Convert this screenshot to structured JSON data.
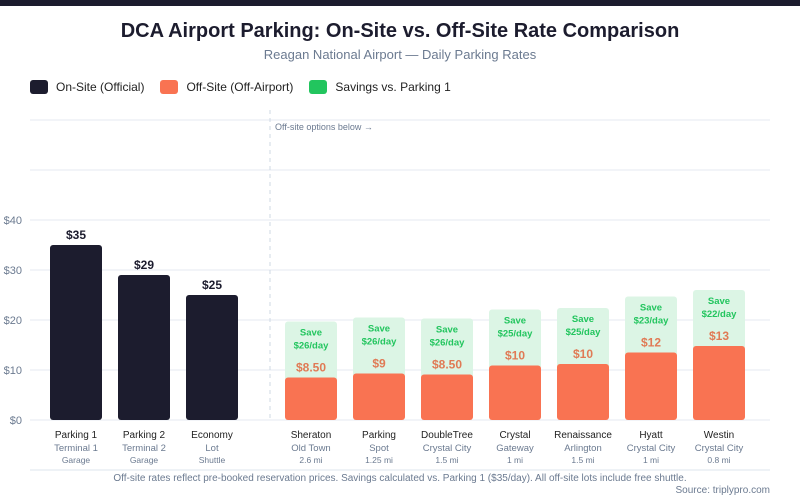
{
  "chart_data": {
    "type": "bar",
    "title": "DCA Airport Parking: On-Site vs. Off-Site Rate Comparison",
    "subtitle": "Reagan National Airport — Daily Parking Rates",
    "legend": [
      {
        "label": "On-Site (Official)",
        "color": "#1c1c2e"
      },
      {
        "label": "Off-Site (Off-Airport)",
        "color": "#f97352"
      },
      {
        "label": "Savings vs. Parking 1",
        "color": "#22c55e"
      }
    ],
    "legend_placement": "top-left",
    "ylim": [
      0,
      60
    ],
    "y_ticks": [
      0,
      10,
      20,
      30,
      40
    ],
    "y_tick_labels": [
      "$0",
      "$10",
      "$20",
      "$30",
      "$40"
    ],
    "grid": true,
    "divider_label": "Off-site options below →",
    "on_site": [
      {
        "name": "Parking 1",
        "line2": "Terminal 1",
        "line3": "Garage",
        "value": 35,
        "label": "$35"
      },
      {
        "name": "Parking 2",
        "line2": "Terminal 2",
        "line3": "Garage",
        "value": 29,
        "label": "$29"
      },
      {
        "name": "Economy",
        "line2": "Lot",
        "line3": "Shuttle",
        "value": 25,
        "label": "$25"
      }
    ],
    "off_site": [
      {
        "name": "Sheraton",
        "line2": "Old Town",
        "line3": "2.6 mi",
        "value": 8.5,
        "label": "$8.50",
        "savings": "Save",
        "savings_amount": "$26/day"
      },
      {
        "name": "Parking",
        "line2": "Spot",
        "line3": "1.25 mi",
        "value": 9,
        "label": "$9",
        "savings": "Save",
        "savings_amount": "$26/day"
      },
      {
        "name": "DoubleTree",
        "line2": "Crystal City",
        "line3": "1.5 mi",
        "value": 8.5,
        "label": "$8.50",
        "savings": "Save",
        "savings_amount": "$26/day"
      },
      {
        "name": "Crystal",
        "line2": "Gateway",
        "line3": "1 mi",
        "value": 10,
        "label": "$10",
        "savings": "Save",
        "savings_amount": "$25/day"
      },
      {
        "name": "Renaissance",
        "line2": "Arlington",
        "line3": "1.5 mi",
        "value": 10,
        "label": "$10",
        "savings": "Save",
        "savings_amount": "$25/day"
      },
      {
        "name": "Hyatt",
        "line2": "Crystal City",
        "line3": "1 mi",
        "value": 12,
        "label": "$12",
        "savings": "Save",
        "savings_amount": "$23/day"
      },
      {
        "name": "Westin",
        "line2": "Crystal City",
        "line3": "0.8 mi",
        "value": 13,
        "label": "$13",
        "savings": "Save",
        "savings_amount": "$22/day"
      }
    ],
    "footnote": "Off-site rates reflect pre-booked reservation prices. Savings calculated vs. Parking 1 ($35/day). All off-site lots include free shuttle.",
    "source": "Source: triplypro.com"
  }
}
